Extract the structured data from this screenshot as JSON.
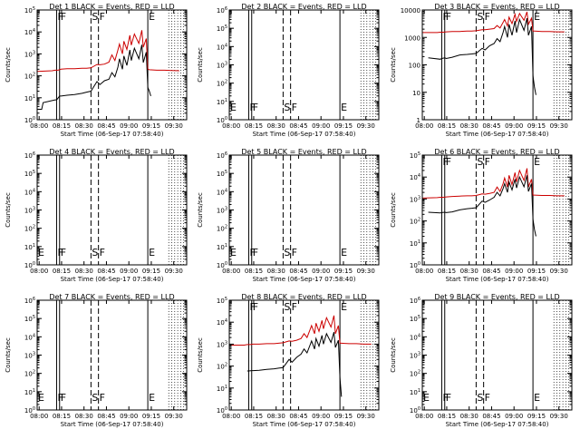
{
  "colors": {
    "events": "#000000",
    "lld": "#cc0000",
    "axes": "#000000",
    "background": "#ffffff"
  },
  "xlabel": "Start Time (06-Sep-17 07:58:40)",
  "ylabel": "Counts/sec",
  "x_tick_labels": [
    "08:00",
    "08:15",
    "08:30",
    "08:45",
    "09:00",
    "09:15",
    "09:30"
  ],
  "chart_data": [
    {
      "type": "line",
      "title": "Det 1 BLACK = Events, RED = LLD",
      "x_range_minutes": [
        0,
        100
      ],
      "ylim": [
        1,
        100000
      ],
      "log_y": true,
      "y_tick_labels": [
        "10^0",
        "10^1",
        "10^2",
        "10^3",
        "10^4",
        "10^5"
      ],
      "markers": [
        {
          "label": "F",
          "x": 13,
          "style": "solid"
        },
        {
          "label": "F",
          "x": 15,
          "style": "solid"
        },
        {
          "label": "S",
          "x": 36,
          "style": "dashed"
        },
        {
          "label": "F",
          "x": 41,
          "style": "dashed"
        },
        {
          "label": "E",
          "x": 74,
          "style": "solid"
        }
      ],
      "series": [
        {
          "role": "lld",
          "x": [
            0,
            10,
            12,
            14,
            16,
            20,
            25,
            30,
            33,
            36,
            40,
            42,
            45,
            48,
            50,
            52,
            54,
            55,
            57,
            58,
            60,
            62,
            63,
            65,
            68,
            70,
            71,
            73,
            74,
            75,
            80,
            85,
            90,
            95
          ],
          "y": [
            160,
            170,
            180,
            180,
            200,
            210,
            210,
            220,
            220,
            230,
            330,
            320,
            340,
            420,
            900,
            500,
            1500,
            2800,
            1000,
            3800,
            1600,
            7000,
            2500,
            8000,
            3000,
            12000,
            2000,
            5000,
            200,
            190,
            180,
            180,
            175,
            170
          ]
        },
        {
          "role": "events",
          "x": [
            1,
            3,
            4,
            12,
            13,
            15,
            16,
            20,
            25,
            30,
            33,
            36,
            40,
            42,
            45,
            48,
            50,
            52,
            54,
            55,
            57,
            58,
            60,
            62,
            63,
            65,
            68,
            70,
            71,
            73,
            74,
            75,
            76
          ],
          "y": [
            3,
            3,
            6,
            8,
            8,
            12,
            12,
            13,
            14,
            16,
            18,
            20,
            55,
            40,
            60,
            70,
            140,
            90,
            250,
            600,
            200,
            800,
            300,
            1500,
            500,
            1800,
            600,
            2600,
            400,
            1200,
            30,
            20,
            12
          ]
        }
      ]
    },
    {
      "type": "line",
      "title": "Det 2 BLACK = Events, RED = LLD",
      "x_range_minutes": [
        0,
        100
      ],
      "ylim": [
        1,
        1000000
      ],
      "log_y": true,
      "y_tick_labels": [
        "10^0",
        "10^1",
        "10^2",
        "10^3",
        "10^4",
        "10^5",
        "10^6"
      ],
      "markers": [
        {
          "label": "E",
          "x": 0,
          "style": "none"
        },
        {
          "label": "F",
          "x": 13,
          "style": "solid"
        },
        {
          "label": "F",
          "x": 15,
          "style": "solid"
        },
        {
          "label": "S",
          "x": 36,
          "style": "dashed"
        },
        {
          "label": "F",
          "x": 41,
          "style": "dashed"
        },
        {
          "label": "E",
          "x": 74,
          "style": "solid"
        }
      ],
      "series": []
    },
    {
      "type": "line",
      "title": "Det 3 BLACK = Events, RED = LLD",
      "x_range_minutes": [
        0,
        100
      ],
      "ylim": [
        1,
        10000
      ],
      "log_y": true,
      "y_tick_labels": [
        "1",
        "10",
        "100",
        "1000",
        "10000"
      ],
      "markers": [
        {
          "label": "F",
          "x": 13,
          "style": "solid"
        },
        {
          "label": "F",
          "x": 15,
          "style": "solid"
        },
        {
          "label": "S",
          "x": 36,
          "style": "dashed"
        },
        {
          "label": "F",
          "x": 41,
          "style": "dashed"
        },
        {
          "label": "E",
          "x": 74,
          "style": "solid"
        }
      ],
      "series": [
        {
          "role": "lld",
          "x": [
            0,
            10,
            12,
            14,
            16,
            20,
            25,
            30,
            33,
            36,
            40,
            42,
            45,
            48,
            50,
            52,
            54,
            55,
            57,
            58,
            60,
            62,
            63,
            65,
            68,
            70,
            71,
            73,
            74,
            75,
            80,
            85,
            90,
            95
          ],
          "y": [
            1500,
            1500,
            1550,
            1550,
            1600,
            1650,
            1650,
            1700,
            1700,
            1750,
            1900,
            1900,
            2000,
            2100,
            2700,
            2200,
            3500,
            4500,
            2600,
            5500,
            3200,
            7000,
            3800,
            7500,
            4200,
            8500,
            3000,
            5000,
            1700,
            1700,
            1650,
            1650,
            1600,
            1600
          ]
        },
        {
          "role": "events",
          "x": [
            4,
            12,
            13,
            15,
            16,
            20,
            25,
            30,
            33,
            36,
            40,
            42,
            45,
            48,
            50,
            52,
            54,
            55,
            57,
            58,
            60,
            62,
            63,
            65,
            68,
            70,
            71,
            73,
            74,
            75,
            76
          ],
          "y": [
            180,
            160,
            170,
            180,
            170,
            190,
            230,
            240,
            250,
            260,
            400,
            350,
            500,
            600,
            900,
            700,
            1500,
            2500,
            1000,
            3000,
            1200,
            4000,
            1500,
            4500,
            1800,
            5000,
            1200,
            2500,
            40,
            15,
            8
          ]
        }
      ]
    },
    {
      "type": "line",
      "title": "Det 4 BLACK = Events, RED = LLD",
      "x_range_minutes": [
        0,
        100
      ],
      "ylim": [
        1,
        1000000
      ],
      "log_y": true,
      "y_tick_labels": [
        "10^0",
        "10^1",
        "10^2",
        "10^3",
        "10^4",
        "10^5",
        "10^6"
      ],
      "markers": [
        {
          "label": "E",
          "x": 0,
          "style": "none"
        },
        {
          "label": "F",
          "x": 13,
          "style": "solid"
        },
        {
          "label": "F",
          "x": 15,
          "style": "solid"
        },
        {
          "label": "S",
          "x": 36,
          "style": "dashed"
        },
        {
          "label": "F",
          "x": 41,
          "style": "dashed"
        },
        {
          "label": "E",
          "x": 74,
          "style": "solid"
        }
      ],
      "series": []
    },
    {
      "type": "line",
      "title": "Det 5 BLACK = Events, RED = LLD",
      "x_range_minutes": [
        0,
        100
      ],
      "ylim": [
        1,
        1000000
      ],
      "log_y": true,
      "y_tick_labels": [
        "10^0",
        "10^1",
        "10^2",
        "10^3",
        "10^4",
        "10^5",
        "10^6"
      ],
      "markers": [
        {
          "label": "E",
          "x": 0,
          "style": "none"
        },
        {
          "label": "F",
          "x": 13,
          "style": "solid"
        },
        {
          "label": "F",
          "x": 15,
          "style": "solid"
        },
        {
          "label": "S",
          "x": 36,
          "style": "dashed"
        },
        {
          "label": "F",
          "x": 41,
          "style": "dashed"
        },
        {
          "label": "E",
          "x": 74,
          "style": "solid"
        }
      ],
      "series": []
    },
    {
      "type": "line",
      "title": "Det 6 BLACK = Events, RED = LLD",
      "x_range_minutes": [
        0,
        100
      ],
      "ylim": [
        1,
        100000
      ],
      "log_y": true,
      "y_tick_labels": [
        "10^0",
        "10^1",
        "10^2",
        "10^3",
        "10^4",
        "10^5"
      ],
      "markers": [
        {
          "label": "F",
          "x": 13,
          "style": "solid"
        },
        {
          "label": "F",
          "x": 15,
          "style": "solid"
        },
        {
          "label": "S",
          "x": 36,
          "style": "dashed"
        },
        {
          "label": "F",
          "x": 41,
          "style": "dashed"
        },
        {
          "label": "E",
          "x": 74,
          "style": "solid"
        }
      ],
      "series": [
        {
          "role": "lld",
          "x": [
            0,
            10,
            12,
            14,
            16,
            20,
            25,
            30,
            33,
            36,
            40,
            42,
            45,
            48,
            50,
            52,
            54,
            55,
            57,
            58,
            60,
            62,
            63,
            65,
            68,
            70,
            71,
            73,
            74,
            75,
            80,
            85,
            90,
            95
          ],
          "y": [
            1100,
            1150,
            1200,
            1200,
            1250,
            1300,
            1350,
            1400,
            1400,
            1450,
            1700,
            1650,
            1800,
            2000,
            3500,
            2200,
            5000,
            9000,
            3500,
            12000,
            4500,
            16000,
            6000,
            20000,
            7000,
            25000,
            3500,
            8000,
            1500,
            1500,
            1450,
            1450,
            1400,
            1400
          ]
        },
        {
          "role": "events",
          "x": [
            4,
            12,
            13,
            15,
            16,
            20,
            25,
            30,
            33,
            36,
            40,
            42,
            45,
            48,
            50,
            52,
            54,
            55,
            57,
            58,
            60,
            62,
            63,
            65,
            68,
            70,
            71,
            73,
            74,
            75,
            76
          ],
          "y": [
            250,
            230,
            240,
            250,
            240,
            260,
            320,
            360,
            380,
            400,
            800,
            700,
            900,
            1200,
            2000,
            1400,
            3000,
            5000,
            2000,
            6000,
            2600,
            8000,
            3200,
            10000,
            3600,
            12000,
            2200,
            5000,
            120,
            40,
            20
          ]
        }
      ]
    },
    {
      "type": "line",
      "title": "Det 7 BLACK = Events, RED = LLD",
      "x_range_minutes": [
        0,
        100
      ],
      "ylim": [
        1,
        1000000
      ],
      "log_y": true,
      "y_tick_labels": [
        "10^0",
        "10^1",
        "10^2",
        "10^3",
        "10^4",
        "10^5",
        "10^6"
      ],
      "markers": [
        {
          "label": "E",
          "x": 0,
          "style": "none"
        },
        {
          "label": "F",
          "x": 13,
          "style": "solid"
        },
        {
          "label": "F",
          "x": 15,
          "style": "solid"
        },
        {
          "label": "S",
          "x": 36,
          "style": "dashed"
        },
        {
          "label": "F",
          "x": 41,
          "style": "dashed"
        },
        {
          "label": "E",
          "x": 74,
          "style": "solid"
        }
      ],
      "series": []
    },
    {
      "type": "line",
      "title": "Det 8 BLACK = Events, RED = LLD",
      "x_range_minutes": [
        0,
        100
      ],
      "ylim": [
        1,
        100000
      ],
      "log_y": true,
      "y_tick_labels": [
        "10^0",
        "10^1",
        "10^2",
        "10^3",
        "10^4",
        "10^5"
      ],
      "markers": [
        {
          "label": "F",
          "x": 13,
          "style": "solid"
        },
        {
          "label": "F",
          "x": 15,
          "style": "solid"
        },
        {
          "label": "S",
          "x": 36,
          "style": "dashed"
        },
        {
          "label": "F",
          "x": 41,
          "style": "dashed"
        },
        {
          "label": "E",
          "x": 74,
          "style": "solid"
        }
      ],
      "series": [
        {
          "role": "lld",
          "x": [
            0,
            10,
            12,
            14,
            16,
            20,
            25,
            30,
            33,
            36,
            40,
            42,
            45,
            48,
            50,
            52,
            54,
            55,
            57,
            58,
            60,
            62,
            63,
            65,
            68,
            70,
            71,
            73,
            74,
            75,
            80,
            85,
            90,
            95
          ],
          "y": [
            900,
            900,
            950,
            950,
            1000,
            1000,
            1050,
            1050,
            1100,
            1150,
            1400,
            1350,
            1500,
            1800,
            3000,
            2000,
            4500,
            7000,
            3000,
            9000,
            3800,
            12000,
            5000,
            16000,
            6000,
            20000,
            3000,
            7000,
            1100,
            1100,
            1050,
            1050,
            1000,
            1000
          ]
        },
        {
          "role": "events",
          "x": [
            12,
            13,
            15,
            16,
            20,
            25,
            30,
            33,
            36,
            40,
            42,
            45,
            48,
            50,
            52,
            54,
            55,
            57,
            58,
            60,
            62,
            63,
            65,
            68,
            70,
            71,
            73,
            74,
            75
          ],
          "y": [
            60,
            60,
            62,
            62,
            64,
            70,
            75,
            80,
            85,
            200,
            150,
            250,
            350,
            600,
            400,
            900,
            1400,
            600,
            1800,
            800,
            2500,
            1000,
            3000,
            1200,
            3500,
            700,
            1500,
            30,
            4
          ]
        }
      ]
    },
    {
      "type": "line",
      "title": "Det 9 BLACK = Events, RED = LLD",
      "x_range_minutes": [
        0,
        100
      ],
      "ylim": [
        1,
        1000000
      ],
      "log_y": true,
      "y_tick_labels": [
        "10^0",
        "10^1",
        "10^2",
        "10^3",
        "10^4",
        "10^5",
        "10^6"
      ],
      "markers": [
        {
          "label": "E",
          "x": 0,
          "style": "none"
        },
        {
          "label": "F",
          "x": 13,
          "style": "solid"
        },
        {
          "label": "F",
          "x": 15,
          "style": "solid"
        },
        {
          "label": "S",
          "x": 36,
          "style": "dashed"
        },
        {
          "label": "F",
          "x": 41,
          "style": "dashed"
        },
        {
          "label": "E",
          "x": 74,
          "style": "solid"
        }
      ],
      "series": []
    }
  ]
}
